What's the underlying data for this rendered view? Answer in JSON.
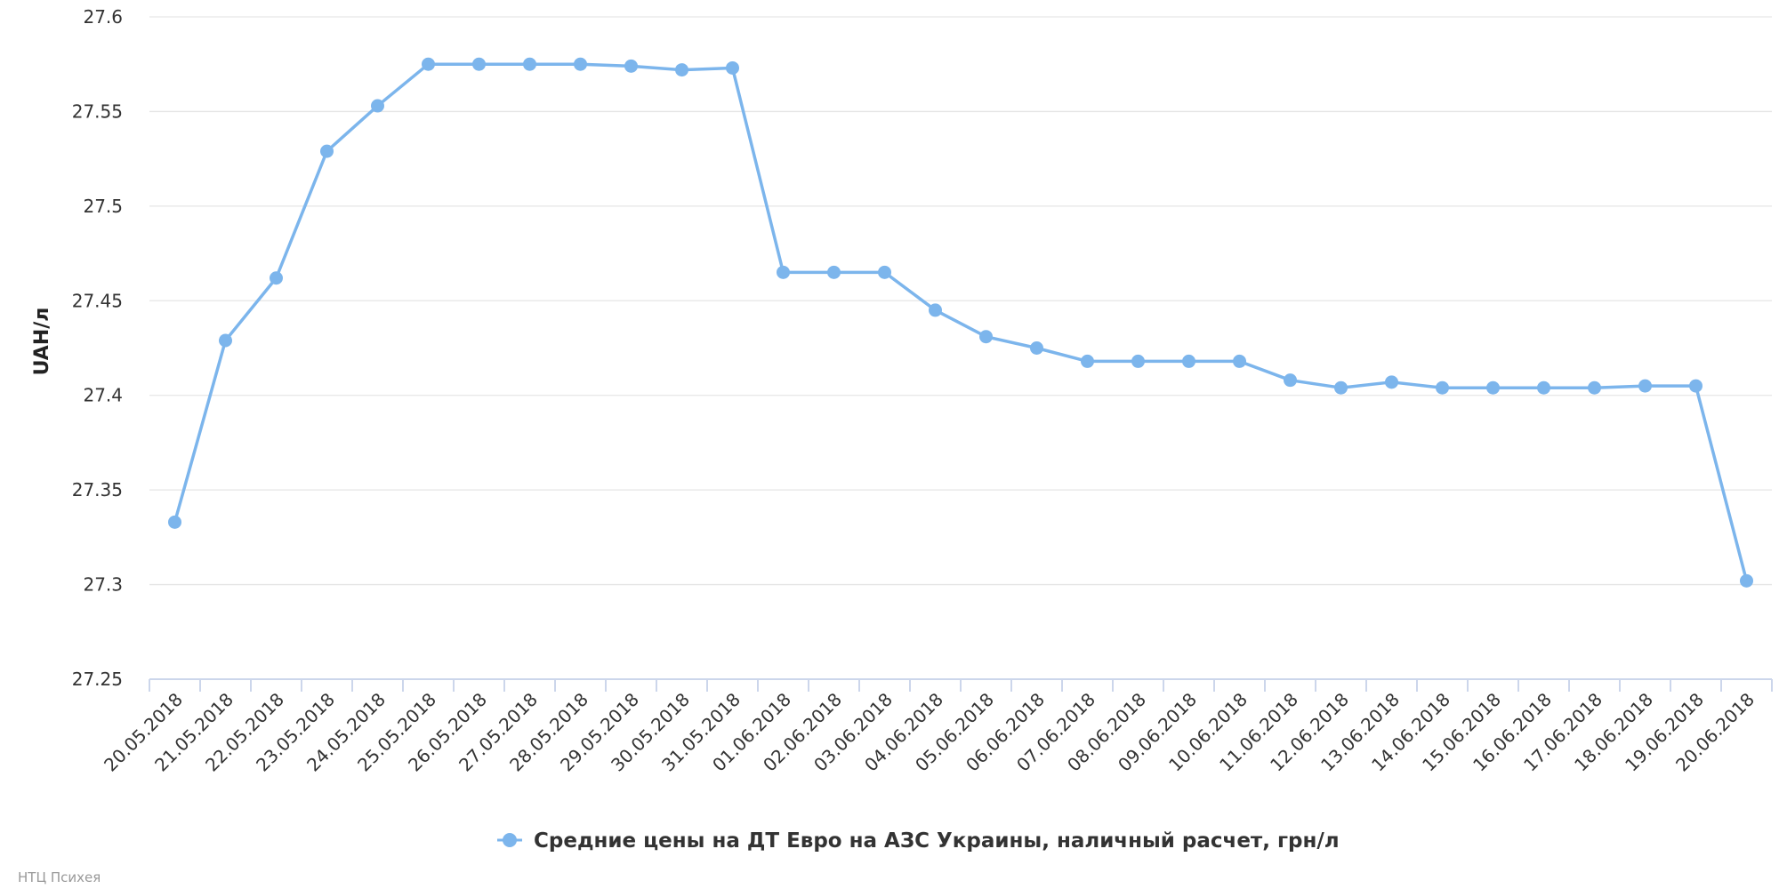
{
  "chart_data": {
    "type": "line",
    "ylabel": "UAH/л",
    "ylim": [
      27.25,
      27.6
    ],
    "yticks": [
      "27.6",
      "27.55",
      "27.5",
      "27.45",
      "27.4",
      "27.35",
      "27.3",
      "27.25"
    ],
    "grid": true,
    "legend_position": "bottom-center",
    "line_color": "#7cb5ec",
    "categories": [
      "20.05.2018",
      "21.05.2018",
      "22.05.2018",
      "23.05.2018",
      "24.05.2018",
      "25.05.2018",
      "26.05.2018",
      "27.05.2018",
      "28.05.2018",
      "29.05.2018",
      "30.05.2018",
      "31.05.2018",
      "01.06.2018",
      "02.06.2018",
      "03.06.2018",
      "04.06.2018",
      "05.06.2018",
      "06.06.2018",
      "07.06.2018",
      "08.06.2018",
      "09.06.2018",
      "10.06.2018",
      "11.06.2018",
      "12.06.2018",
      "13.06.2018",
      "14.06.2018",
      "15.06.2018",
      "16.06.2018",
      "17.06.2018",
      "18.06.2018",
      "19.06.2018",
      "20.06.2018"
    ],
    "series": [
      {
        "name": "Средние цены на ДТ Евро на АЗС Украины, наличный расчет, грн/л",
        "values": [
          27.333,
          27.429,
          27.462,
          27.529,
          27.553,
          27.575,
          27.575,
          27.575,
          27.575,
          27.574,
          27.572,
          27.573,
          27.465,
          27.465,
          27.465,
          27.445,
          27.431,
          27.425,
          27.418,
          27.418,
          27.418,
          27.418,
          27.408,
          27.404,
          27.407,
          27.404,
          27.404,
          27.404,
          27.404,
          27.405,
          27.405,
          27.302
        ]
      }
    ]
  },
  "credit": "НТЦ Психея"
}
